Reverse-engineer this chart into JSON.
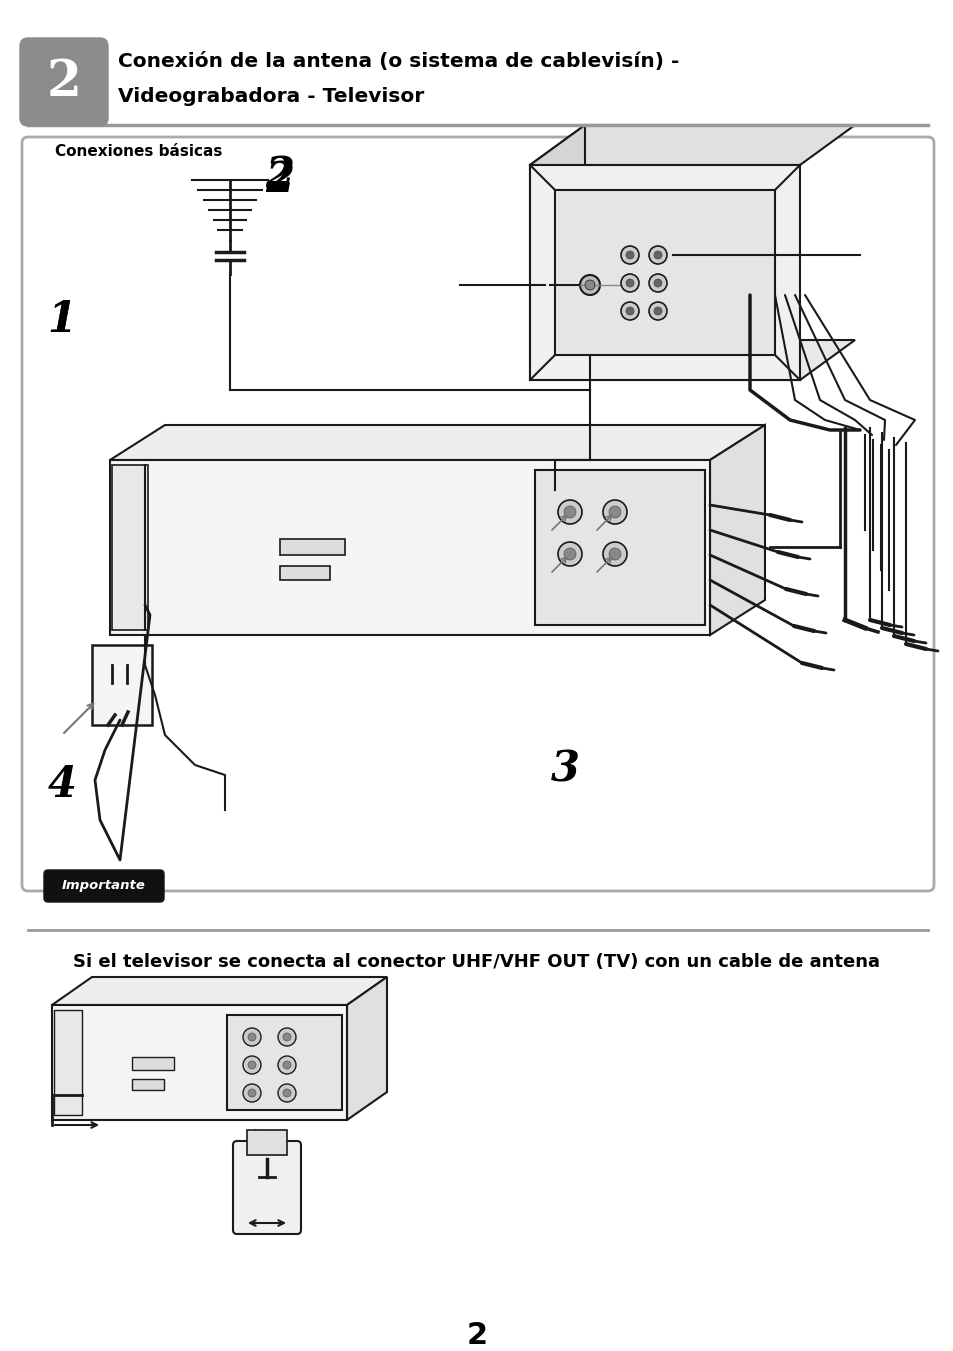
{
  "page_bg": "#ffffff",
  "header_box_color": "#8c8c8c",
  "header_number": "2",
  "header_title_line1": "Conexión de la antena (o sistema de cablevisín) -",
  "header_title_line2": "Videograbadora - Televisor",
  "section_label": "Conexiones básicas",
  "importante_text": "Importante",
  "bottom_text": "Si el televisor se conecta al conector UHF/VHF OUT (TV) con un cable de antena",
  "page_number": "2",
  "lc": "#1a1a1a",
  "lw": 1.5,
  "gray_fill": "#f0f0f0",
  "mid_gray": "#d8d8d8",
  "dark_gray_line": "#555555"
}
